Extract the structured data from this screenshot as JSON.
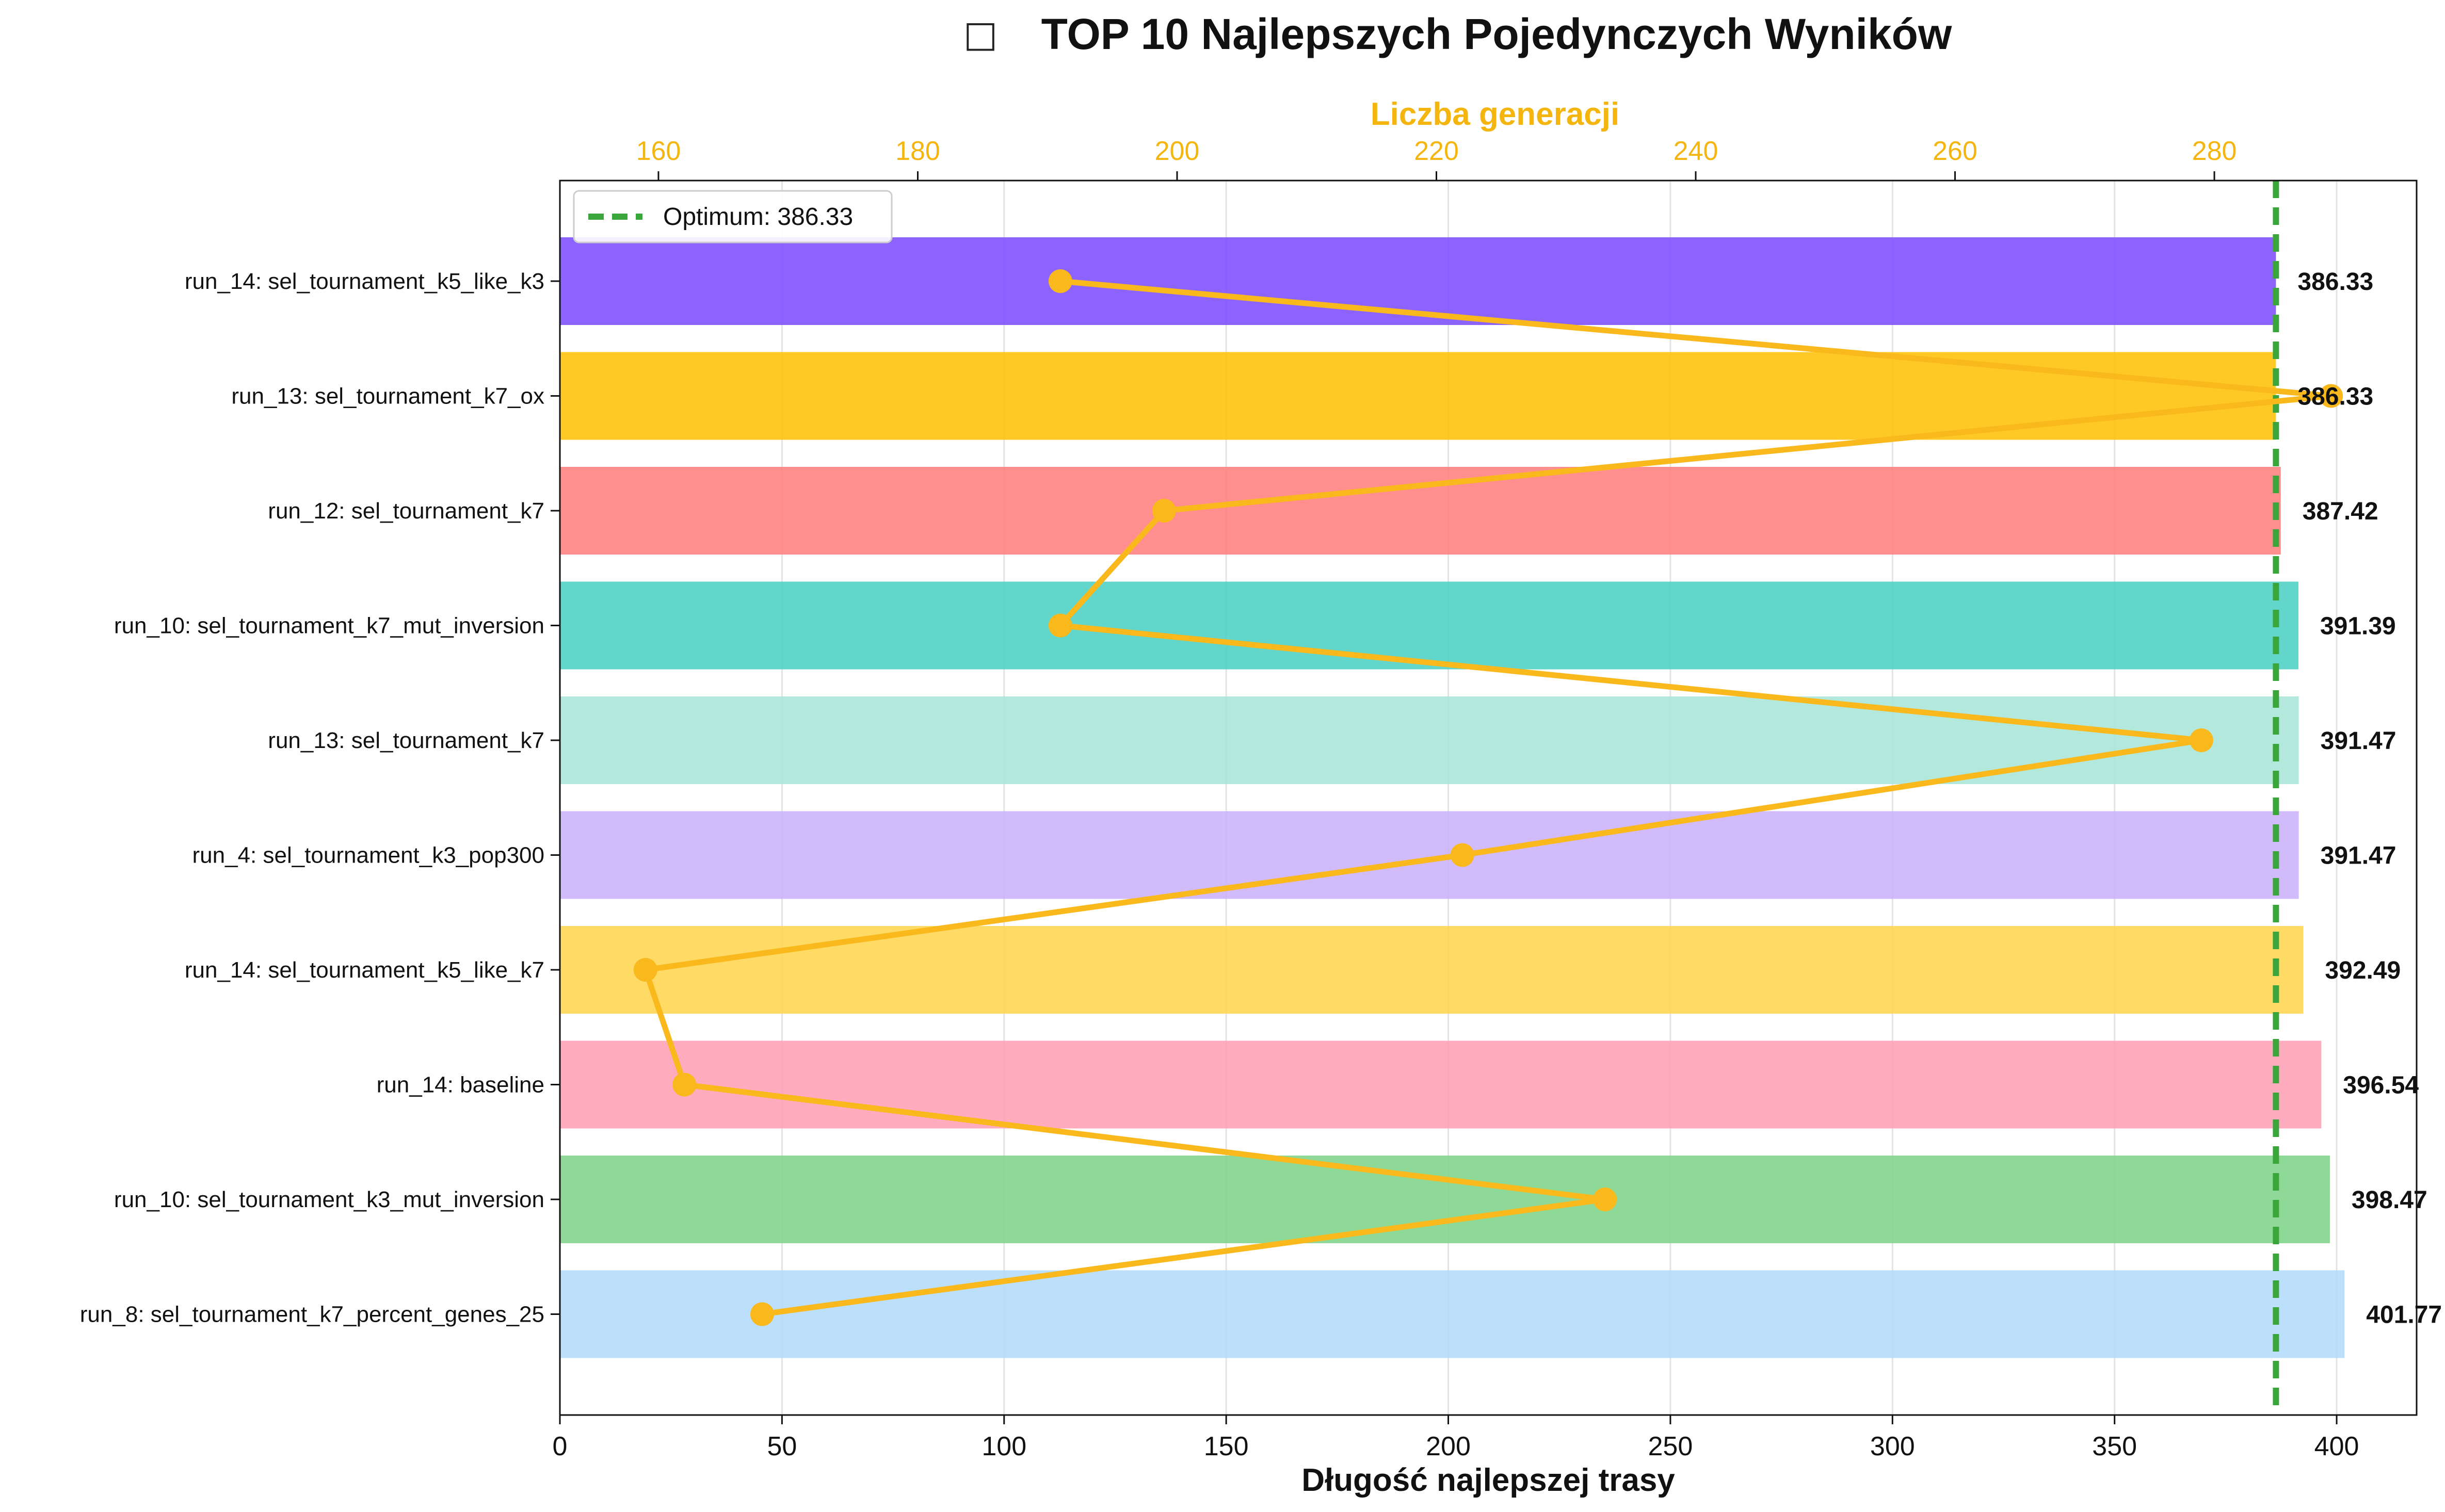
{
  "chart_data": {
    "type": "bar",
    "orientation": "horizontal",
    "title_icon": "□",
    "title": "TOP 10 Najlepszych Pojedynczych Wyników",
    "xlabel": "Długość najlepszej trasy",
    "x2label": "Liczba generacji",
    "xlim": [
      0,
      418
    ],
    "xticks": [
      0,
      50,
      100,
      150,
      200,
      250,
      300,
      350,
      400
    ],
    "x2lim": [
      152.4,
      295.6
    ],
    "x2ticks": [
      160,
      180,
      200,
      220,
      240,
      260,
      280
    ],
    "grid": true,
    "legend_position": "top-left",
    "categories": [
      "run_14: sel_tournament_k5_like_k3",
      "run_13: sel_tournament_k7_ox",
      "run_12: sel_tournament_k7",
      "run_10: sel_tournament_k7_mut_inversion",
      "run_13: sel_tournament_k7",
      "run_4: sel_tournament_k3_pop300",
      "run_14: sel_tournament_k5_like_k7",
      "run_14: baseline",
      "run_10: sel_tournament_k3_mut_inversion",
      "run_8: sel_tournament_k7_percent_genes_25"
    ],
    "values": [
      386.33,
      386.33,
      387.42,
      391.39,
      391.47,
      391.47,
      392.49,
      396.54,
      398.47,
      401.77
    ],
    "value_labels": [
      "386.33",
      "386.33",
      "387.42",
      "391.39",
      "391.47",
      "391.47",
      "392.49",
      "396.54",
      "398.47",
      "401.77"
    ],
    "bar_colors": [
      "#7c4dff",
      "#ffc107",
      "#ff8080",
      "#4dd0c4",
      "#a8e6d8",
      "#cbb2fb",
      "#ffd54f",
      "#ff9fb5",
      "#7ed38a",
      "#b3dbfb"
    ],
    "line_series": {
      "axis": "top",
      "color": "#f9b81c",
      "generations": [
        191,
        289,
        199,
        191,
        279,
        222,
        159,
        162,
        233,
        168
      ]
    },
    "optimum": {
      "label": "Optimum: 386.33",
      "value": 386.33,
      "color": "#3aa53a"
    }
  }
}
